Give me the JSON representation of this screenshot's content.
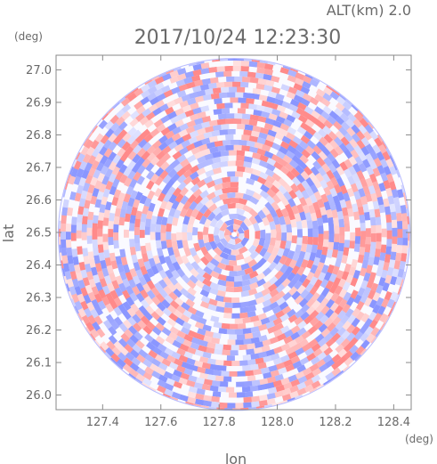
{
  "header": {
    "altitude_label": "ALT(km)  2.0",
    "timestamp": "2017/10/24  12:23:30"
  },
  "chart_data": {
    "type": "heatmap",
    "title": "2017/10/24  12:23:30",
    "xlabel": "lon",
    "ylabel": "lat",
    "x_unit": "(deg)",
    "y_unit": "(deg)",
    "xlim": [
      127.24,
      128.46
    ],
    "ylim": [
      25.955,
      27.045
    ],
    "x_ticks": [
      "127.4",
      "127.6",
      "127.8",
      "128.0",
      "128.2",
      "128.4"
    ],
    "y_ticks": [
      "26.0",
      "26.1",
      "26.2",
      "26.3",
      "26.4",
      "26.5",
      "26.6",
      "26.7",
      "26.8",
      "26.9",
      "27.0"
    ],
    "center": {
      "lon": 127.852,
      "lat": 26.494
    },
    "radius_lat_deg": 0.54,
    "grid": false,
    "colors": {
      "positive": "#ff9a9a",
      "negative": "#9aa6ff",
      "axis": "#8a8a8a",
      "text": "#6a6a6a"
    }
  }
}
